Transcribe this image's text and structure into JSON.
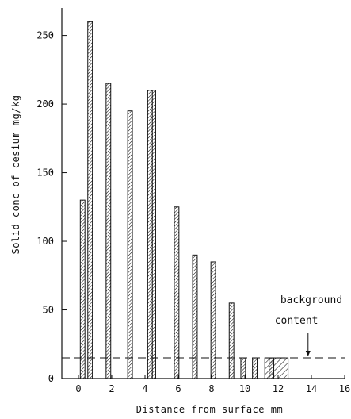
{
  "chart_data": {
    "type": "bar",
    "xlabel": "Distance from surface  mm",
    "ylabel": "Solid conc of cesium  mg/kg",
    "xlim": [
      -1,
      16
    ],
    "ylim": [
      0,
      270
    ],
    "x_ticks": [
      0,
      2,
      4,
      6,
      8,
      10,
      12,
      14,
      16
    ],
    "y_ticks": [
      0,
      50,
      100,
      150,
      200,
      250
    ],
    "grid": false,
    "bars": [
      {
        "x": 0.25,
        "value": 130
      },
      {
        "x": 0.7,
        "value": 260
      },
      {
        "x": 1.8,
        "value": 215
      },
      {
        "x": 3.1,
        "value": 195
      },
      {
        "x": 4.3,
        "value": 210
      },
      {
        "x": 4.5,
        "value": 210
      },
      {
        "x": 5.9,
        "value": 125
      },
      {
        "x": 7.0,
        "value": 90
      },
      {
        "x": 8.1,
        "value": 85
      },
      {
        "x": 9.2,
        "value": 55
      },
      {
        "x": 9.9,
        "value": 15
      },
      {
        "x": 10.6,
        "value": 15
      },
      {
        "x": 11.6,
        "value": 15
      }
    ],
    "background_content": {
      "value": 15,
      "label_line1": "background",
      "label_line2": "content"
    },
    "series": [
      {
        "values": [
          130,
          260,
          215,
          195,
          210,
          210,
          125,
          90,
          85,
          55,
          15,
          15,
          15
        ]
      }
    ]
  }
}
